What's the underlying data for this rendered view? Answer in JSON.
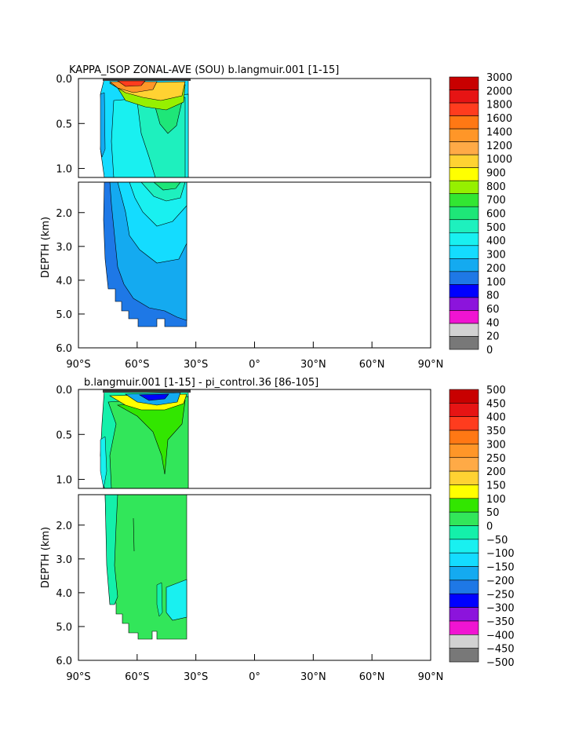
{
  "chart_data": [
    {
      "type": "heatmap",
      "title": "KAPPA_ISOP ZONAL-AVE (SOU) b.langmuir.001 [1-15]",
      "ylabel": "DEPTH (km)",
      "xlabel": "",
      "x_range": [
        -90,
        90
      ],
      "x_ticks": [
        "90°S",
        "60°S",
        "30°S",
        "0°",
        "30°N",
        "60°N",
        "90°N"
      ],
      "y_ticks_upper": [
        "0.0",
        "0.5",
        "1.0"
      ],
      "y_ticks_lower": [
        "2.0",
        "3.0",
        "4.0",
        "5.0",
        "6.0"
      ],
      "upper_depth_range": [
        0.0,
        1.1
      ],
      "lower_depth_range": [
        1.1,
        6.0
      ],
      "data_lat_range": [
        -77,
        -34
      ],
      "max_depth": 5.35,
      "colorbar_levels": [
        "3000",
        "2000",
        "1800",
        "1600",
        "1400",
        "1200",
        "1000",
        "900",
        "800",
        "700",
        "600",
        "500",
        "400",
        "300",
        "200",
        "100",
        "80",
        "60",
        "40",
        "20",
        "0"
      ],
      "colorbar_colors": [
        "#c80000",
        "#e61414",
        "#ff3c1e",
        "#ff7814",
        "#ff9628",
        "#ffaa46",
        "#ffd232",
        "#ffff00",
        "#96f000",
        "#32e632",
        "#1ee678",
        "#1ef0be",
        "#19f0f0",
        "#14dcff",
        "#14aaf0",
        "#1e78e6",
        "#0000ff",
        "#8c14dc",
        "#f014d2",
        "#d2d2d2",
        "#787878"
      ]
    },
    {
      "type": "heatmap",
      "title": "b.langmuir.001 [1-15] - pi_control.36 [86-105]",
      "ylabel": "DEPTH (km)",
      "xlabel": "",
      "x_range": [
        -90,
        90
      ],
      "x_ticks": [
        "90°S",
        "60°S",
        "30°S",
        "0°",
        "30°N",
        "60°N",
        "90°N"
      ],
      "y_ticks_upper": [
        "0.0",
        "0.5",
        "1.0"
      ],
      "y_ticks_lower": [
        "2.0",
        "3.0",
        "4.0",
        "5.0",
        "6.0"
      ],
      "upper_depth_range": [
        0.0,
        1.1
      ],
      "lower_depth_range": [
        1.1,
        6.0
      ],
      "data_lat_range": [
        -77,
        -34
      ],
      "max_depth": 5.35,
      "colorbar_levels": [
        "500",
        "450",
        "400",
        "350",
        "300",
        "250",
        "200",
        "150",
        "100",
        "50",
        "0",
        "−50",
        "−100",
        "−150",
        "−200",
        "−250",
        "−300",
        "−350",
        "−400",
        "−450",
        "−500"
      ],
      "colorbar_colors": [
        "#c80000",
        "#e61414",
        "#ff3c1e",
        "#ff7814",
        "#ff9628",
        "#ffaa46",
        "#ffd232",
        "#ffff00",
        "#32e600",
        "#32e65a",
        "#14f0aa",
        "#19f0f0",
        "#14dcff",
        "#14aaf0",
        "#1e78e6",
        "#0000ff",
        "#8c14dc",
        "#f014d2",
        "#d2d2d2",
        "#787878"
      ]
    }
  ]
}
